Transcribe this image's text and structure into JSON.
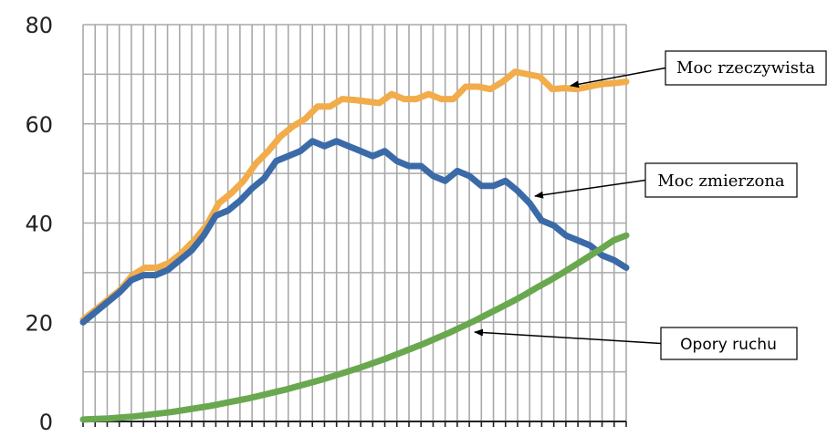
{
  "chart_data": {
    "type": "line",
    "title": "",
    "xlabel": "",
    "ylabel": "",
    "ylim": [
      0,
      80
    ],
    "yticks": [
      "0",
      "20",
      "40",
      "60",
      "80"
    ],
    "grid": true,
    "series": [
      {
        "name": "Moc rzeczywista",
        "color": "#f2ac4a",
        "values": [
          20.5,
          22.5,
          24.5,
          26.5,
          29.5,
          31,
          31,
          32,
          34,
          36.5,
          39.5,
          44,
          46,
          48.5,
          52,
          54.5,
          57.5,
          59.5,
          61,
          63.5,
          63.5,
          65,
          64.8,
          64.5,
          64.2,
          66,
          65,
          65,
          66,
          65,
          65,
          67.5,
          67.5,
          67,
          68.5,
          70.5,
          70,
          69.5,
          67,
          67.2,
          67,
          67.5,
          68,
          68.2,
          68.5
        ]
      },
      {
        "name": "Moc zmierzona",
        "color": "#3b6aa8",
        "values": [
          20,
          22,
          24,
          26,
          28.5,
          29.5,
          29.5,
          30.5,
          32.5,
          34.5,
          37.5,
          41.5,
          42.5,
          44.5,
          47,
          49,
          52.5,
          53.5,
          54.5,
          56.5,
          55.5,
          56.5,
          55.5,
          54.5,
          53.5,
          54.5,
          52.5,
          51.5,
          51.5,
          49.5,
          48.5,
          50.5,
          49.5,
          47.5,
          47.5,
          48.5,
          46.5,
          44,
          40.5,
          39.5,
          37.5,
          36.5,
          35.5,
          33.5,
          32.5,
          31
        ]
      },
      {
        "name": "Opory ruchu",
        "color": "#6aa84f",
        "values": [
          0.4,
          0.5,
          0.6,
          0.8,
          1.0,
          1.3,
          1.6,
          1.9,
          2.3,
          2.7,
          3.1,
          3.6,
          4.1,
          4.6,
          5.2,
          5.8,
          6.4,
          7.1,
          7.8,
          8.5,
          9.3,
          10.1,
          10.9,
          11.8,
          12.7,
          13.7,
          14.7,
          15.7,
          16.8,
          17.9,
          19.1,
          20.3,
          21.6,
          22.9,
          24.2,
          25.6,
          27.1,
          28.5,
          30.0,
          31.6,
          33.2,
          34.8,
          36.5,
          37.5
        ]
      }
    ],
    "annotations": [
      {
        "text": "Moc rzeczywista",
        "series": 0
      },
      {
        "text": "Moc zmierzona",
        "series": 1
      },
      {
        "text": "Opory ruchu",
        "series": 2
      }
    ]
  }
}
